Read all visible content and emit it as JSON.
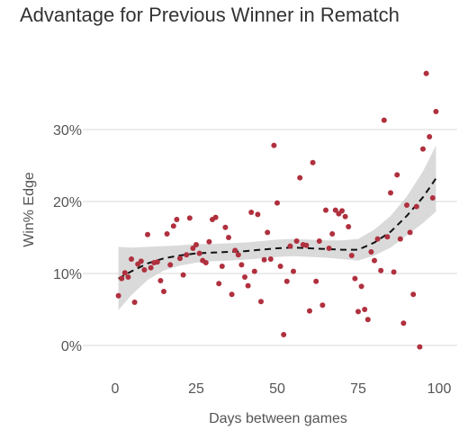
{
  "chart_data": {
    "type": "scatter",
    "title": "Advantage for Previous Winner in Rematch",
    "xlabel": "Days between games",
    "ylabel": "Win% Edge",
    "xlim": [
      -5,
      102
    ],
    "ylim": [
      -2,
      39
    ],
    "x_ticks": [
      0,
      25,
      50,
      75,
      100
    ],
    "x_tick_labels": [
      "0",
      "25",
      "50",
      "75",
      "100"
    ],
    "y_ticks": [
      0,
      10,
      20,
      30
    ],
    "y_tick_labels": [
      "0%",
      "10%",
      "20%",
      "30%"
    ],
    "grid": "horizontal",
    "legend": "none",
    "colors": {
      "points": "#b0303e",
      "band": "#d3d3d3",
      "trend": "#111111",
      "grid": "#d9d9d9",
      "text": "#555555"
    },
    "points": [
      {
        "x": 1,
        "y": 6.9
      },
      {
        "x": 2,
        "y": 9.3
      },
      {
        "x": 3,
        "y": 10.1
      },
      {
        "x": 4,
        "y": 9.5
      },
      {
        "x": 5,
        "y": 12.0
      },
      {
        "x": 6,
        "y": 6.0
      },
      {
        "x": 7,
        "y": 11.3
      },
      {
        "x": 8,
        "y": 11.7
      },
      {
        "x": 9,
        "y": 10.5
      },
      {
        "x": 10,
        "y": 15.4
      },
      {
        "x": 11,
        "y": 10.8
      },
      {
        "x": 12,
        "y": 11.5
      },
      {
        "x": 13,
        "y": 11.6
      },
      {
        "x": 14,
        "y": 9.0
      },
      {
        "x": 15,
        "y": 7.5
      },
      {
        "x": 16,
        "y": 15.5
      },
      {
        "x": 17,
        "y": 11.2
      },
      {
        "x": 18,
        "y": 16.6
      },
      {
        "x": 19,
        "y": 17.5
      },
      {
        "x": 20,
        "y": 12.1
      },
      {
        "x": 21,
        "y": 9.8
      },
      {
        "x": 22,
        "y": 12.6
      },
      {
        "x": 23,
        "y": 17.7
      },
      {
        "x": 24,
        "y": 13.5
      },
      {
        "x": 25,
        "y": 14.0
      },
      {
        "x": 26,
        "y": 12.8
      },
      {
        "x": 27,
        "y": 11.8
      },
      {
        "x": 28,
        "y": 11.5
      },
      {
        "x": 29,
        "y": 14.4
      },
      {
        "x": 30,
        "y": 17.5
      },
      {
        "x": 31,
        "y": 17.8
      },
      {
        "x": 32,
        "y": 8.6
      },
      {
        "x": 33,
        "y": 11.0
      },
      {
        "x": 34,
        "y": 16.4
      },
      {
        "x": 35,
        "y": 15.0
      },
      {
        "x": 36,
        "y": 7.1
      },
      {
        "x": 37,
        "y": 13.2
      },
      {
        "x": 38,
        "y": 12.6
      },
      {
        "x": 39,
        "y": 11.2
      },
      {
        "x": 40,
        "y": 9.5
      },
      {
        "x": 41,
        "y": 8.3
      },
      {
        "x": 42,
        "y": 18.5
      },
      {
        "x": 43,
        "y": 10.3
      },
      {
        "x": 44,
        "y": 18.2
      },
      {
        "x": 45,
        "y": 6.1
      },
      {
        "x": 46,
        "y": 11.9
      },
      {
        "x": 47,
        "y": 15.7
      },
      {
        "x": 48,
        "y": 12.0
      },
      {
        "x": 49,
        "y": 27.8
      },
      {
        "x": 50,
        "y": 19.8
      },
      {
        "x": 51,
        "y": 11.0
      },
      {
        "x": 52,
        "y": 1.5
      },
      {
        "x": 53,
        "y": 8.9
      },
      {
        "x": 54,
        "y": 13.8
      },
      {
        "x": 55,
        "y": 10.3
      },
      {
        "x": 56,
        "y": 14.5
      },
      {
        "x": 57,
        "y": 23.3
      },
      {
        "x": 58,
        "y": 14.0
      },
      {
        "x": 59,
        "y": 13.9
      },
      {
        "x": 60,
        "y": 4.8
      },
      {
        "x": 61,
        "y": 25.4
      },
      {
        "x": 62,
        "y": 8.9
      },
      {
        "x": 63,
        "y": 14.5
      },
      {
        "x": 64,
        "y": 5.6
      },
      {
        "x": 65,
        "y": 18.8
      },
      {
        "x": 66,
        "y": 13.5
      },
      {
        "x": 67,
        "y": 15.5
      },
      {
        "x": 68,
        "y": 18.8
      },
      {
        "x": 69,
        "y": 18.3
      },
      {
        "x": 70,
        "y": 18.7
      },
      {
        "x": 71,
        "y": 17.9
      },
      {
        "x": 72,
        "y": 16.5
      },
      {
        "x": 73,
        "y": 12.5
      },
      {
        "x": 74,
        "y": 9.3
      },
      {
        "x": 75,
        "y": 4.7
      },
      {
        "x": 76,
        "y": 8.2
      },
      {
        "x": 77,
        "y": 5.0
      },
      {
        "x": 78,
        "y": 3.6
      },
      {
        "x": 79,
        "y": 13.0
      },
      {
        "x": 80,
        "y": 11.8
      },
      {
        "x": 81,
        "y": 14.8
      },
      {
        "x": 82,
        "y": 10.4
      },
      {
        "x": 83,
        "y": 31.3
      },
      {
        "x": 84,
        "y": 15.1
      },
      {
        "x": 85,
        "y": 21.2
      },
      {
        "x": 86,
        "y": 10.2
      },
      {
        "x": 87,
        "y": 23.7
      },
      {
        "x": 88,
        "y": 14.8
      },
      {
        "x": 89,
        "y": 3.1
      },
      {
        "x": 90,
        "y": 19.5
      },
      {
        "x": 91,
        "y": 15.7
      },
      {
        "x": 92,
        "y": 7.1
      },
      {
        "x": 93,
        "y": 19.3
      },
      {
        "x": 94,
        "y": -0.2
      },
      {
        "x": 95,
        "y": 27.3
      },
      {
        "x": 96,
        "y": 37.8
      },
      {
        "x": 97,
        "y": 29.0
      },
      {
        "x": 98,
        "y": 20.5
      },
      {
        "x": 99,
        "y": 32.5
      }
    ],
    "trend": {
      "x": [
        1,
        5,
        10,
        15,
        20,
        25,
        30,
        35,
        40,
        45,
        50,
        55,
        60,
        65,
        70,
        75,
        80,
        85,
        90,
        95,
        99
      ],
      "y": [
        9.3,
        10.3,
        11.4,
        12.1,
        12.5,
        12.8,
        12.9,
        13.0,
        13.1,
        13.3,
        13.5,
        13.6,
        13.5,
        13.4,
        13.3,
        13.3,
        14.3,
        15.8,
        18.0,
        20.6,
        23.2
      ],
      "lower": [
        4.9,
        7.0,
        9.1,
        10.4,
        11.1,
        11.5,
        11.7,
        11.8,
        11.9,
        12.1,
        12.3,
        12.4,
        12.3,
        12.2,
        12.0,
        11.8,
        12.5,
        13.6,
        15.3,
        17.0,
        18.6
      ],
      "upper": [
        13.7,
        13.6,
        13.7,
        13.8,
        13.9,
        14.1,
        14.1,
        14.2,
        14.3,
        14.5,
        14.7,
        14.8,
        14.7,
        14.6,
        14.6,
        14.8,
        16.1,
        18.0,
        20.7,
        24.2,
        27.8
      ]
    }
  }
}
